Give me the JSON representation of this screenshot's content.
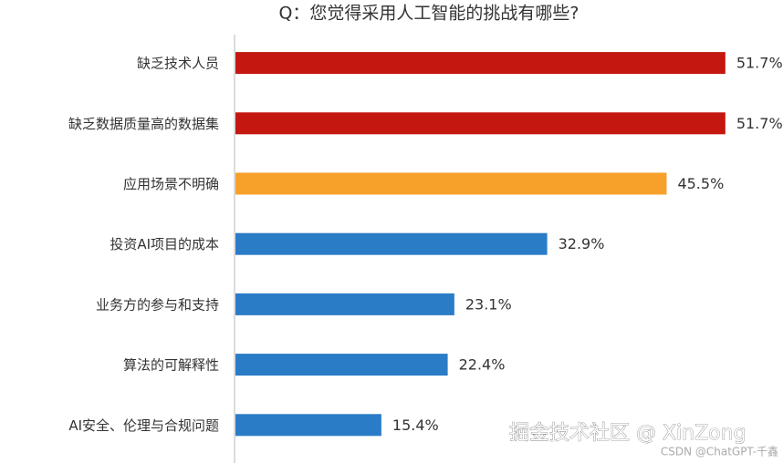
{
  "chart_data": {
    "type": "barh",
    "title": "Q：您觉得采用人工智能的挑战有哪些?",
    "categories": [
      "缺乏技术人员",
      "缺乏数据质量高的数据集",
      "应用场景不明确",
      "投资AI项目的成本",
      "业务方的参与和支持",
      "算法的可解释性",
      "AI安全、伦理与合规问题"
    ],
    "values": [
      51.7,
      51.7,
      45.5,
      32.9,
      23.1,
      22.4,
      15.4
    ],
    "value_labels": [
      "51.7%",
      "51.7%",
      "45.5%",
      "32.9%",
      "23.1%",
      "22.4%",
      "15.4%"
    ],
    "colors": [
      "#c3170f",
      "#c3170f",
      "#f7a02a",
      "#2b7cc6",
      "#2b7cc6",
      "#2b7cc6",
      "#2b7cc6"
    ],
    "xlim": [
      0,
      60
    ]
  },
  "watermarks": [
    "掘金技术社区 @ XinZong",
    "CSDN @ChatGPT-千鑫"
  ]
}
